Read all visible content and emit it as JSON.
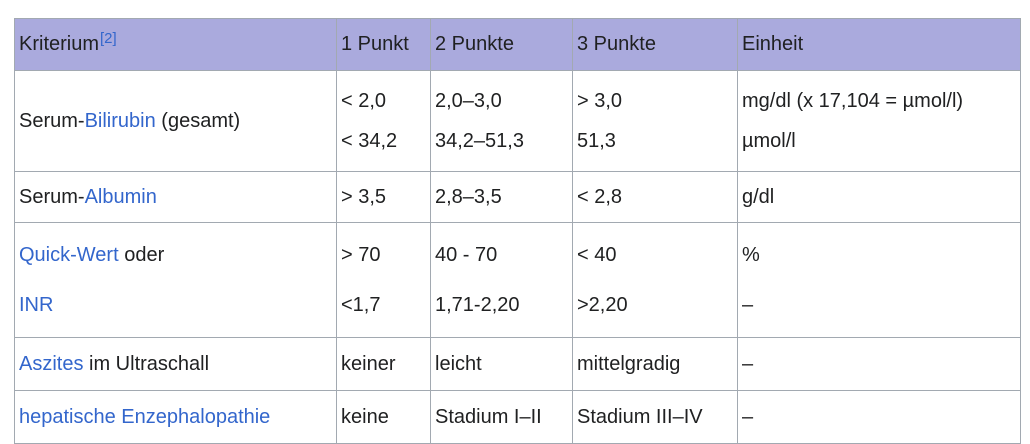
{
  "table": {
    "header": {
      "kriterium": "Kriterium",
      "ref": "[2]",
      "col1": "1 Punkt",
      "col2": "2 Punkte",
      "col3": "3 Punkte",
      "col4": "Einheit"
    },
    "rows": {
      "bilirubin": {
        "prefix": "Serum-",
        "link": "Bilirubin",
        "suffix": " (gesamt)",
        "p1": [
          "< 2,0",
          "< 34,2"
        ],
        "p2": [
          "2,0–3,0",
          "34,2–51,3"
        ],
        "p3": [
          "> 3,0",
          "51,3"
        ],
        "unit": [
          "mg/dl (x 17,104 = µmol/l)",
          "µmol/l"
        ]
      },
      "albumin": {
        "prefix": "Serum-",
        "link": "Albumin",
        "p1": "> 3,5",
        "p2": "2,8–3,5",
        "p3": "< 2,8",
        "unit": "g/dl"
      },
      "quick": {
        "link1": "Quick-Wert",
        "mid": " oder",
        "link2": "INR",
        "p1": [
          "> 70",
          "<1,7"
        ],
        "p2": [
          "40 - 70",
          "1,71-2,20"
        ],
        "p3": [
          "< 40",
          ">2,20"
        ],
        "unit": [
          "%",
          "–"
        ]
      },
      "aszites": {
        "link": "Aszites",
        "suffix": " im Ultraschall",
        "p1": "keiner",
        "p2": "leicht",
        "p3": "mittelgradig",
        "unit": "–"
      },
      "enzephalopathie": {
        "link": "hepatische Enzephalopathie",
        "p1": "keine",
        "p2": "Stadium I–II",
        "p3": "Stadium III–IV",
        "unit": "–"
      }
    }
  },
  "colors": {
    "header_bg": "#aaaadd",
    "link": "#3366cc",
    "border": "#a2a9b1"
  }
}
